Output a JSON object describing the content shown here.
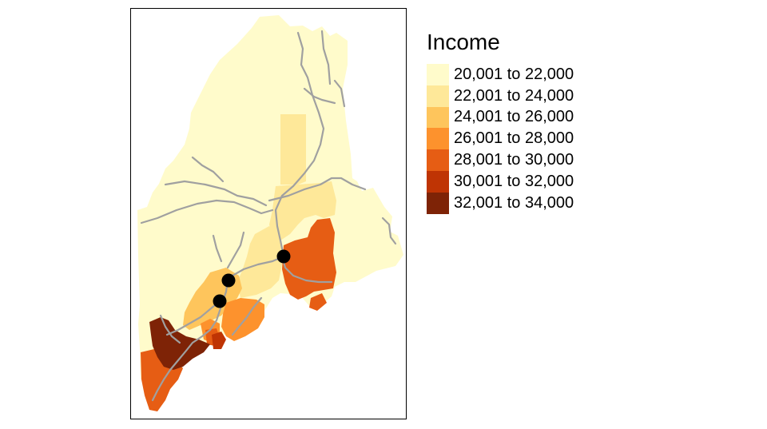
{
  "legend": {
    "title": "Income",
    "items": [
      {
        "label": "20,001 to 22,000",
        "color": "#FFFBCB"
      },
      {
        "label": "22,001 to 24,000",
        "color": "#FEE899"
      },
      {
        "label": "24,001 to 26,000",
        "color": "#FEC55C"
      },
      {
        "label": "26,001 to 28,000",
        "color": "#FD922D"
      },
      {
        "label": "28,001 to 30,000",
        "color": "#E65D14"
      },
      {
        "label": "30,001 to 32,000",
        "color": "#BF3404"
      },
      {
        "label": "32,001 to 34,000",
        "color": "#7E2306"
      }
    ]
  },
  "map": {
    "road_color": "#A0A0A0",
    "marker_color": "#000000",
    "marker_count": 3
  }
}
